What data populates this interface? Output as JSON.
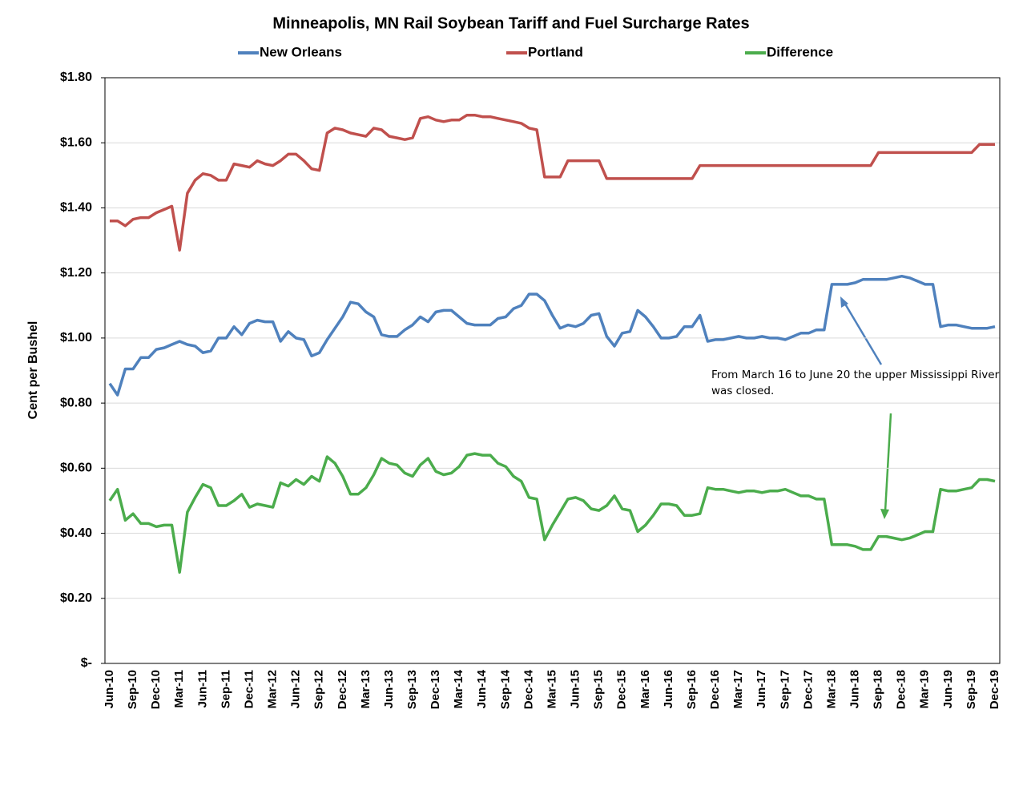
{
  "chart_data": {
    "type": "line",
    "title": "Minneapolis, MN Rail Soybean Tariff and Fuel Surcharge Rates",
    "y_label": "Cent per Bushel",
    "annotation": "From March 16 to June 20 the upper Mississippi River was closed.",
    "legend_position": "top",
    "grid": true,
    "categories": [
      "Jun-10",
      null,
      null,
      "Sep-10",
      null,
      null,
      "Dec-10",
      null,
      null,
      "Mar-11",
      null,
      null,
      "Jun-11",
      null,
      null,
      "Sep-11",
      null,
      null,
      "Dec-11",
      null,
      null,
      "Mar-12",
      null,
      null,
      "Jun-12",
      null,
      null,
      "Sep-12",
      null,
      null,
      "Dec-12",
      null,
      null,
      "Mar-13",
      null,
      null,
      "Jun-13",
      null,
      null,
      "Sep-13",
      null,
      null,
      "Dec-13",
      null,
      null,
      "Mar-14",
      null,
      null,
      "Jun-14",
      null,
      null,
      "Sep-14",
      null,
      null,
      "Dec-14",
      null,
      null,
      "Mar-15",
      null,
      null,
      "Jun-15",
      null,
      null,
      "Sep-15",
      null,
      null,
      "Dec-15",
      null,
      null,
      "Mar-16",
      null,
      null,
      "Jun-16",
      null,
      null,
      "Sep-16",
      null,
      null,
      "Dec-16",
      null,
      null,
      "Mar-17",
      null,
      null,
      "Jun-17",
      null,
      null,
      "Sep-17",
      null,
      null,
      "Dec-17",
      null,
      null,
      "Mar-18",
      null,
      null,
      "Jun-18",
      null,
      null,
      "Sep-18",
      null,
      null,
      "Dec-18",
      null,
      null,
      "Mar-19",
      null,
      null,
      "Jun-19",
      null,
      null,
      "Sep-19",
      null,
      null,
      "Dec-19"
    ],
    "ylim": [
      0,
      1.8
    ],
    "yticks": [
      {
        "value": 0,
        "label": "$-"
      },
      {
        "value": 0.2,
        "label": "$0.20"
      },
      {
        "value": 0.4,
        "label": "$0.40"
      },
      {
        "value": 0.6,
        "label": "$0.60"
      },
      {
        "value": 0.8,
        "label": "$0.80"
      },
      {
        "value": 1.0,
        "label": "$1.00"
      },
      {
        "value": 1.2,
        "label": "$1.20"
      },
      {
        "value": 1.4,
        "label": "$1.40"
      },
      {
        "value": 1.6,
        "label": "$1.60"
      },
      {
        "value": 1.8,
        "label": "$1.80"
      }
    ],
    "series": [
      {
        "name": "New Orleans",
        "color": "#4f81bd",
        "values": [
          0.86,
          0.825,
          0.905,
          0.905,
          0.94,
          0.94,
          0.965,
          0.97,
          0.98,
          0.99,
          0.98,
          0.975,
          0.955,
          0.96,
          1.0,
          1.0,
          1.035,
          1.01,
          1.045,
          1.055,
          1.05,
          1.05,
          0.99,
          1.02,
          1.0,
          0.995,
          0.945,
          0.955,
          0.995,
          1.03,
          1.065,
          1.11,
          1.105,
          1.08,
          1.065,
          1.01,
          1.005,
          1.005,
          1.025,
          1.04,
          1.065,
          1.05,
          1.08,
          1.085,
          1.085,
          1.065,
          1.045,
          1.04,
          1.04,
          1.04,
          1.06,
          1.065,
          1.09,
          1.1,
          1.135,
          1.135,
          1.115,
          1.07,
          1.03,
          1.04,
          1.035,
          1.045,
          1.07,
          1.075,
          1.005,
          0.975,
          1.015,
          1.02,
          1.085,
          1.065,
          1.035,
          1.0,
          1.0,
          1.005,
          1.035,
          1.035,
          1.07,
          0.99,
          0.995,
          0.995,
          1.0,
          1.005,
          1.0,
          1.0,
          1.005,
          1.0,
          1.0,
          0.995,
          1.005,
          1.015,
          1.015,
          1.025,
          1.025,
          1.165,
          1.165,
          1.165,
          1.17,
          1.18,
          1.18,
          1.18,
          1.18,
          1.185,
          1.19,
          1.185,
          1.175,
          1.165,
          1.165,
          1.035,
          1.04,
          1.04,
          1.035,
          1.03,
          1.03,
          1.03,
          1.035
        ]
      },
      {
        "name": "Portland",
        "color": "#c0504d",
        "values": [
          1.36,
          1.36,
          1.345,
          1.365,
          1.37,
          1.37,
          1.385,
          1.395,
          1.405,
          1.27,
          1.445,
          1.485,
          1.505,
          1.5,
          1.485,
          1.485,
          1.535,
          1.53,
          1.525,
          1.545,
          1.535,
          1.53,
          1.545,
          1.565,
          1.565,
          1.545,
          1.52,
          1.515,
          1.63,
          1.645,
          1.64,
          1.63,
          1.625,
          1.62,
          1.645,
          1.64,
          1.62,
          1.615,
          1.61,
          1.615,
          1.675,
          1.68,
          1.67,
          1.665,
          1.67,
          1.67,
          1.685,
          1.685,
          1.68,
          1.68,
          1.675,
          1.67,
          1.665,
          1.66,
          1.645,
          1.64,
          1.495,
          1.495,
          1.495,
          1.545,
          1.545,
          1.545,
          1.545,
          1.545,
          1.49,
          1.49,
          1.49,
          1.49,
          1.49,
          1.49,
          1.49,
          1.49,
          1.49,
          1.49,
          1.49,
          1.49,
          1.53,
          1.53,
          1.53,
          1.53,
          1.53,
          1.53,
          1.53,
          1.53,
          1.53,
          1.53,
          1.53,
          1.53,
          1.53,
          1.53,
          1.53,
          1.53,
          1.53,
          1.53,
          1.53,
          1.53,
          1.53,
          1.53,
          1.53,
          1.57,
          1.57,
          1.57,
          1.57,
          1.57,
          1.57,
          1.57,
          1.57,
          1.57,
          1.57,
          1.57,
          1.57,
          1.57,
          1.595,
          1.595,
          1.595
        ]
      },
      {
        "name": "Difference",
        "color": "#4bac4c",
        "values": [
          0.5,
          0.535,
          0.44,
          0.46,
          0.43,
          0.43,
          0.42,
          0.425,
          0.425,
          0.28,
          0.465,
          0.51,
          0.55,
          0.54,
          0.485,
          0.485,
          0.5,
          0.52,
          0.48,
          0.49,
          0.485,
          0.48,
          0.555,
          0.545,
          0.565,
          0.55,
          0.575,
          0.56,
          0.635,
          0.615,
          0.575,
          0.52,
          0.52,
          0.54,
          0.58,
          0.63,
          0.615,
          0.61,
          0.585,
          0.575,
          0.61,
          0.63,
          0.59,
          0.58,
          0.585,
          0.605,
          0.64,
          0.645,
          0.64,
          0.64,
          0.615,
          0.605,
          0.575,
          0.56,
          0.51,
          0.505,
          0.38,
          0.425,
          0.465,
          0.505,
          0.51,
          0.5,
          0.475,
          0.47,
          0.485,
          0.515,
          0.475,
          0.47,
          0.405,
          0.425,
          0.455,
          0.49,
          0.49,
          0.485,
          0.455,
          0.455,
          0.46,
          0.54,
          0.535,
          0.535,
          0.53,
          0.525,
          0.53,
          0.53,
          0.525,
          0.53,
          0.53,
          0.535,
          0.525,
          0.515,
          0.515,
          0.505,
          0.505,
          0.365,
          0.365,
          0.365,
          0.36,
          0.35,
          0.35,
          0.39,
          0.39,
          0.385,
          0.38,
          0.385,
          0.395,
          0.405,
          0.405,
          0.535,
          0.53,
          0.53,
          0.535,
          0.54,
          0.565,
          0.565,
          0.56
        ]
      }
    ]
  }
}
